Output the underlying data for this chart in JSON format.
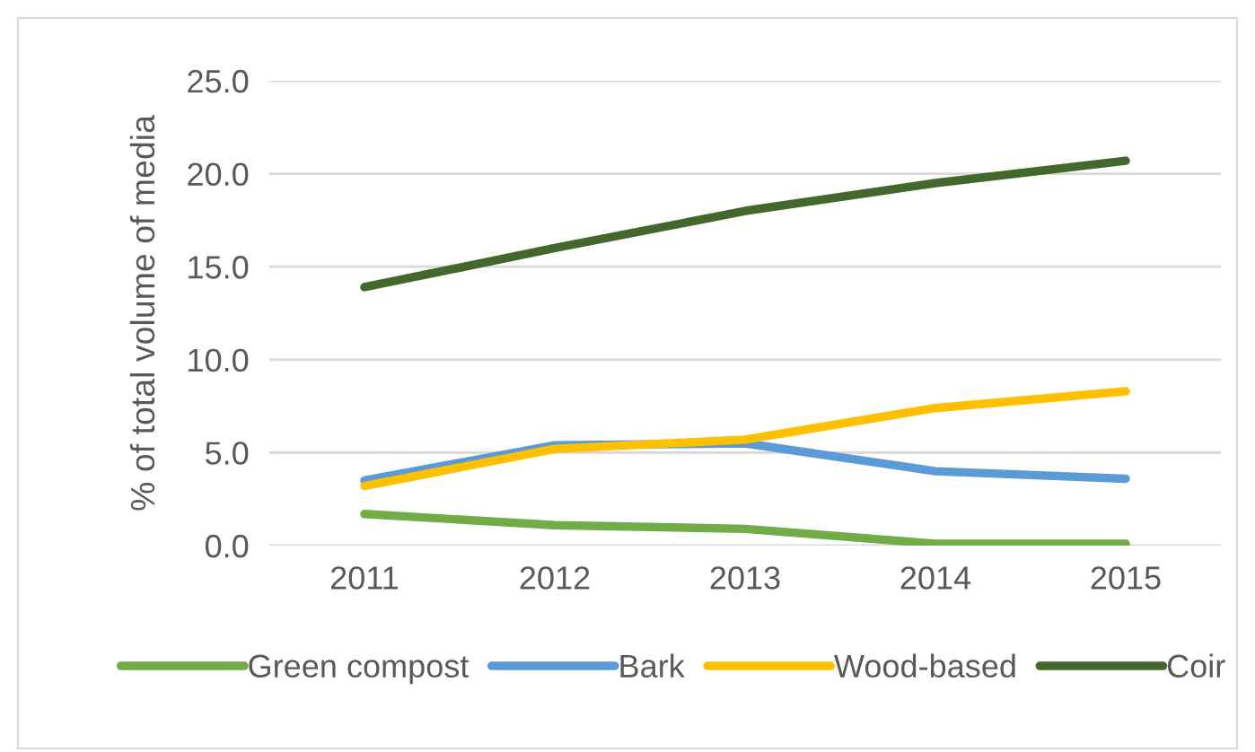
{
  "chart_data": {
    "type": "line",
    "ylabel": "% of total volume of media",
    "categories": [
      "2011",
      "2012",
      "2013",
      "2014",
      "2015"
    ],
    "series": [
      {
        "name": "Green compost",
        "color": "#70ad47",
        "values": [
          1.7,
          1.1,
          0.9,
          0.1,
          0.1
        ]
      },
      {
        "name": "Bark",
        "color": "#5b9bd5",
        "values": [
          3.5,
          5.4,
          5.5,
          4.0,
          3.6
        ]
      },
      {
        "name": "Wood-based",
        "color": "#ffc000",
        "values": [
          3.2,
          5.2,
          5.7,
          7.4,
          8.3
        ]
      },
      {
        "name": "Coir",
        "color": "#43682b",
        "values": [
          13.9,
          16.0,
          18.0,
          19.5,
          20.7
        ]
      }
    ],
    "ylim": [
      0,
      25
    ],
    "yticks": [
      {
        "value": 0,
        "label": "0.0"
      },
      {
        "value": 5,
        "label": "5.0"
      },
      {
        "value": 10,
        "label": "10.0"
      },
      {
        "value": 15,
        "label": "15.0"
      },
      {
        "value": 20,
        "label": "20.0"
      },
      {
        "value": 25,
        "label": "25.0"
      }
    ],
    "grid": "y",
    "legend": "bottom",
    "marker": "none",
    "line_style": "solid"
  }
}
